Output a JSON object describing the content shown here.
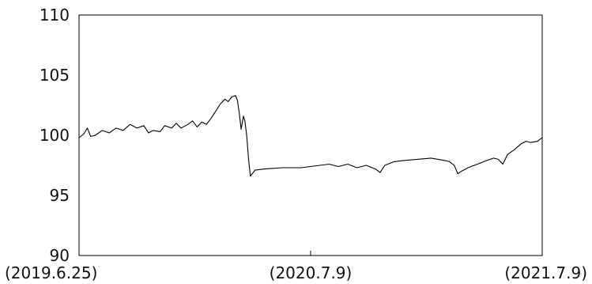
{
  "chart_data": {
    "type": "line",
    "title": "",
    "xlabel": "",
    "ylabel": "",
    "ylim": [
      90,
      110
    ],
    "y_ticks": [
      90,
      95,
      100,
      105,
      110
    ],
    "x_ticks": [
      {
        "x": 0,
        "label": "(2019.6.25)"
      },
      {
        "x": 0.5,
        "label": "(2020.7.9)"
      },
      {
        "x": 1,
        "label": "(2021.7.9)"
      }
    ],
    "grid": false,
    "legend": "none",
    "line_color": "#000000",
    "series": [
      {
        "values": [
          [
            0.0,
            99.8
          ],
          [
            0.01,
            100.1
          ],
          [
            0.018,
            100.6
          ],
          [
            0.025,
            99.9
          ],
          [
            0.035,
            100.0
          ],
          [
            0.05,
            100.4
          ],
          [
            0.065,
            100.2
          ],
          [
            0.08,
            100.6
          ],
          [
            0.095,
            100.4
          ],
          [
            0.11,
            100.9
          ],
          [
            0.125,
            100.6
          ],
          [
            0.14,
            100.8
          ],
          [
            0.15,
            100.2
          ],
          [
            0.16,
            100.4
          ],
          [
            0.175,
            100.3
          ],
          [
            0.185,
            100.8
          ],
          [
            0.2,
            100.6
          ],
          [
            0.21,
            101.0
          ],
          [
            0.22,
            100.6
          ],
          [
            0.235,
            100.9
          ],
          [
            0.245,
            101.2
          ],
          [
            0.255,
            100.7
          ],
          [
            0.265,
            101.1
          ],
          [
            0.275,
            100.9
          ],
          [
            0.285,
            101.4
          ],
          [
            0.295,
            102.0
          ],
          [
            0.305,
            102.6
          ],
          [
            0.315,
            103.0
          ],
          [
            0.322,
            102.8
          ],
          [
            0.33,
            103.2
          ],
          [
            0.338,
            103.3
          ],
          [
            0.342,
            102.9
          ],
          [
            0.346,
            101.8
          ],
          [
            0.35,
            100.5
          ],
          [
            0.355,
            101.6
          ],
          [
            0.358,
            101.2
          ],
          [
            0.362,
            100.0
          ],
          [
            0.366,
            98.0
          ],
          [
            0.37,
            96.6
          ],
          [
            0.374,
            96.8
          ],
          [
            0.38,
            97.1
          ],
          [
            0.4,
            97.2
          ],
          [
            0.44,
            97.3
          ],
          [
            0.48,
            97.3
          ],
          [
            0.52,
            97.5
          ],
          [
            0.54,
            97.6
          ],
          [
            0.56,
            97.4
          ],
          [
            0.58,
            97.6
          ],
          [
            0.6,
            97.3
          ],
          [
            0.62,
            97.5
          ],
          [
            0.64,
            97.2
          ],
          [
            0.65,
            96.9
          ],
          [
            0.66,
            97.5
          ],
          [
            0.68,
            97.8
          ],
          [
            0.7,
            97.9
          ],
          [
            0.73,
            98.0
          ],
          [
            0.76,
            98.1
          ],
          [
            0.79,
            97.9
          ],
          [
            0.8,
            97.8
          ],
          [
            0.81,
            97.5
          ],
          [
            0.818,
            96.8
          ],
          [
            0.825,
            97.0
          ],
          [
            0.84,
            97.3
          ],
          [
            0.86,
            97.6
          ],
          [
            0.88,
            97.9
          ],
          [
            0.895,
            98.1
          ],
          [
            0.905,
            98.0
          ],
          [
            0.915,
            97.6
          ],
          [
            0.925,
            98.4
          ],
          [
            0.94,
            98.8
          ],
          [
            0.955,
            99.3
          ],
          [
            0.965,
            99.5
          ],
          [
            0.975,
            99.4
          ],
          [
            0.99,
            99.5
          ],
          [
            1.0,
            99.8
          ]
        ]
      }
    ]
  }
}
